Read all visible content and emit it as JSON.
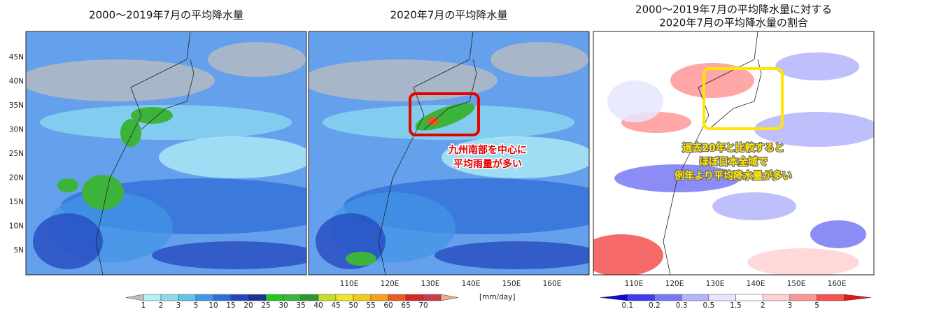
{
  "panels": [
    {
      "title_lines": [
        "2000～2019年7月の平均降水量"
      ]
    },
    {
      "title_lines": [
        "2020年7月の平均降水量"
      ],
      "annotation_lines": [
        "九州南部を中心に",
        "平均雨量が多い"
      ]
    },
    {
      "title_lines": [
        "2000～2019年7月の平均降水量に対する",
        "2020年7月の平均降水量の割合"
      ],
      "annotation_lines": [
        "過去20年と比較すると",
        "ほぼ日本全域で",
        "例年より平均降水量が多い"
      ]
    }
  ],
  "latitude_labels": [
    "45N",
    "40N",
    "35N",
    "30N",
    "25N",
    "20N",
    "15N",
    "10N",
    "5N"
  ],
  "longitude_labels": [
    "110E",
    "120E",
    "130E",
    "140E",
    "150E",
    "160E"
  ],
  "colorbars": [
    {
      "labels": [
        1,
        2,
        3,
        5,
        10,
        15,
        20,
        25,
        30,
        35,
        40,
        45,
        50,
        55,
        60,
        65,
        70
      ],
      "unit": "[mm/day]",
      "colors": [
        "#bdbdbd",
        "#b4f0f5",
        "#8cdcf0",
        "#64c3eb",
        "#4196e6",
        "#2d6ed7",
        "#2346be",
        "#1e3296",
        "#22c81e",
        "#3cb43c",
        "#2d962d",
        "#c8dc28",
        "#f0e628",
        "#f5c81e",
        "#f5a01e",
        "#eb5a1e",
        "#d22828",
        "#c83c50",
        "#f0aa8c"
      ]
    },
    {
      "labels": [
        0.1,
        0.2,
        0.3,
        0.5,
        1.5,
        2,
        3,
        5
      ],
      "colors": [
        "#0a0ad2",
        "#3c3cf0",
        "#7878f5",
        "#b4b4fa",
        "#e6e6ff",
        "#ffffff",
        "#ffd2d2",
        "#ff9696",
        "#f55050",
        "#e61414"
      ]
    }
  ]
}
